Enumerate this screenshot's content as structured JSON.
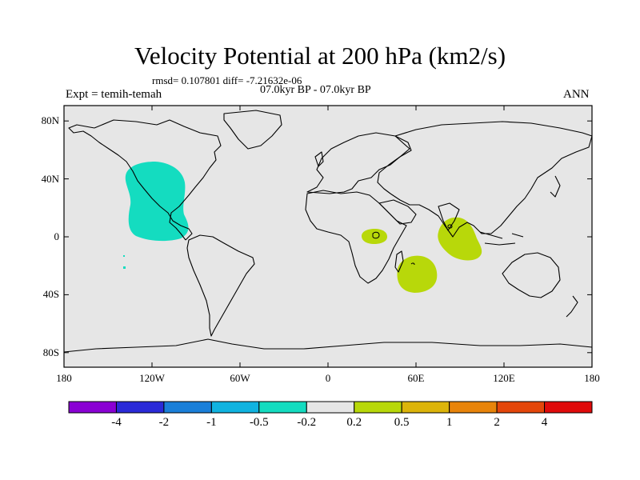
{
  "title": "Velocity Potential at 200 hPa (km2/s)",
  "stats": {
    "rmsd": "rmsd= 0.107801 diff= -7.21632e-06"
  },
  "period": "07.0kyr BP - 07.0kyr BP",
  "experiment": "Expt = temih-temah",
  "season": "ANN",
  "lat_labels": [
    "80N",
    "40N",
    "0",
    "40S",
    "80S"
  ],
  "lat_values": [
    80,
    40,
    0,
    -40,
    -80
  ],
  "lon_labels": [
    "180",
    "120W",
    "60W",
    "0",
    "60E",
    "120E",
    "180"
  ],
  "lon_values": [
    -180,
    -120,
    -60,
    0,
    60,
    120,
    180
  ],
  "colorbar": {
    "colors": [
      "#8a00d4",
      "#2a2ad8",
      "#1a7fd9",
      "#10b3e0",
      "#14dcc0",
      "#e6e6e6",
      "#b8d80a",
      "#dcb40a",
      "#e8840a",
      "#e4460a",
      "#e00a0a"
    ],
    "labels": [
      "-4",
      "-2",
      "-1",
      "-0.5",
      "-0.2",
      "0.2",
      "0.5",
      "1",
      "2",
      "4"
    ]
  },
  "anomalies": [
    {
      "name": "eastern-pacific-negative",
      "class": "-0.5 to -0.2",
      "color": "#14dcc0",
      "lon_range": [
        -138,
        -96
      ],
      "lat_range": [
        -3,
        51
      ]
    },
    {
      "name": "central-africa-positive",
      "class": "0.2 to 0.5",
      "color": "#b8d80a",
      "lon_range": [
        22,
        36
      ],
      "lat_range": [
        -4,
        4
      ]
    },
    {
      "name": "southern-africa-positive",
      "class": "0.2 to 0.5",
      "color": "#b8d80a",
      "lon_range": [
        46,
        74
      ],
      "lat_range": [
        -36,
        -14
      ]
    },
    {
      "name": "indian-ocean-positive",
      "class": "0.2 to 0.5",
      "color": "#b8d80a",
      "lon_range": [
        74,
        108
      ],
      "lat_range": [
        -14,
        14
      ]
    }
  ]
}
